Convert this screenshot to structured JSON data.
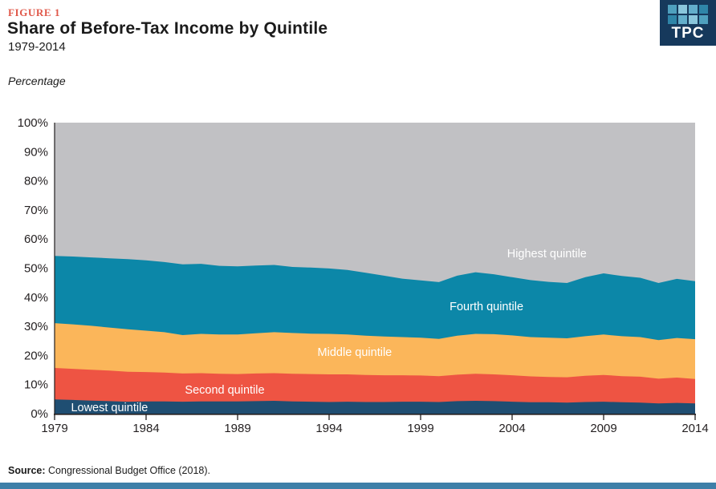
{
  "header": {
    "figure_label": "FIGURE 1",
    "title": "Share of Before-Tax Income by Quintile",
    "subtitle": "1979-2014",
    "unit_label": "Percentage"
  },
  "logo": {
    "text": "TPC",
    "bg_color": "#16395C",
    "square_colors": [
      "#4FA0BE",
      "#8AC6DC",
      "#63AECB",
      "#2F85A8",
      "#2F85A8",
      "#63AECB",
      "#8AC6DC",
      "#4FA0BE"
    ]
  },
  "source": {
    "label": "Source:",
    "text": " Congressional Budget Office  (2018)."
  },
  "footer": {
    "bar_color": "#3E7FA8"
  },
  "chart_data": {
    "type": "area",
    "stacked": true,
    "title": "Share of Before-Tax Income by Quintile",
    "subtitle": "1979-2014",
    "ylabel": "Percentage",
    "ylim": [
      0,
      100
    ],
    "ytick_step": 10,
    "ytick_suffix": "%",
    "grid": false,
    "legend_position": "inline-area-labels",
    "years": [
      1979,
      1980,
      1981,
      1982,
      1983,
      1984,
      1985,
      1986,
      1987,
      1988,
      1989,
      1990,
      1991,
      1992,
      1993,
      1994,
      1995,
      1996,
      1997,
      1998,
      1999,
      2000,
      2001,
      2002,
      2003,
      2004,
      2005,
      2006,
      2007,
      2008,
      2009,
      2010,
      2011,
      2012,
      2013,
      2014
    ],
    "xticks": [
      1979,
      1984,
      1989,
      1994,
      1999,
      2004,
      2009,
      2014
    ],
    "series": [
      {
        "name": "Lowest quintile",
        "color": "#1F4E72",
        "values": [
          4.9,
          4.7,
          4.5,
          4.3,
          4.1,
          4.2,
          4.2,
          4.1,
          4.2,
          4.2,
          4.2,
          4.3,
          4.4,
          4.2,
          4.1,
          4.0,
          4.1,
          4.0,
          4.0,
          4.1,
          4.1,
          4.0,
          4.3,
          4.4,
          4.3,
          4.1,
          3.9,
          3.9,
          3.8,
          4.0,
          4.1,
          3.9,
          3.8,
          3.5,
          3.7,
          3.5
        ]
      },
      {
        "name": "Second quintile",
        "color": "#EE5443",
        "values": [
          10.8,
          10.7,
          10.6,
          10.5,
          10.3,
          10.1,
          9.9,
          9.7,
          9.7,
          9.5,
          9.4,
          9.5,
          9.5,
          9.5,
          9.5,
          9.5,
          9.4,
          9.3,
          9.2,
          9.1,
          9.0,
          8.9,
          9.1,
          9.3,
          9.2,
          9.1,
          8.9,
          8.7,
          8.7,
          9.0,
          9.2,
          9.0,
          8.9,
          8.5,
          8.7,
          8.4
        ]
      },
      {
        "name": "Middle quintile",
        "color": "#FBB65A",
        "values": [
          15.4,
          15.3,
          15.1,
          14.8,
          14.6,
          14.2,
          13.9,
          13.2,
          13.5,
          13.5,
          13.6,
          13.8,
          14.1,
          14.0,
          13.9,
          13.9,
          13.7,
          13.5,
          13.3,
          13.1,
          13.0,
          12.8,
          13.4,
          13.7,
          13.8,
          13.7,
          13.5,
          13.5,
          13.4,
          13.6,
          13.9,
          13.7,
          13.6,
          13.3,
          13.6,
          13.7
        ]
      },
      {
        "name": "Fourth quintile",
        "color": "#0C87A8",
        "values": [
          23.1,
          23.3,
          23.5,
          23.8,
          24.1,
          24.2,
          24.1,
          24.3,
          24.1,
          23.6,
          23.4,
          23.3,
          23.1,
          22.7,
          22.7,
          22.5,
          22.2,
          21.6,
          20.9,
          20.1,
          19.7,
          19.5,
          20.6,
          21.2,
          20.6,
          20.0,
          19.6,
          19.2,
          19.0,
          20.3,
          21.0,
          20.7,
          20.4,
          19.6,
          20.3,
          19.9
        ]
      },
      {
        "name": "Highest quintile",
        "color": "#C1C1C4",
        "values": [
          45.8,
          46.0,
          46.3,
          46.6,
          46.9,
          47.3,
          47.9,
          48.7,
          48.5,
          49.2,
          49.4,
          49.1,
          48.9,
          49.6,
          49.8,
          50.1,
          50.6,
          51.6,
          52.6,
          53.6,
          54.2,
          54.8,
          52.6,
          51.4,
          52.1,
          53.1,
          54.1,
          54.7,
          55.1,
          53.1,
          51.8,
          52.7,
          53.3,
          55.1,
          53.7,
          54.5
        ]
      }
    ],
    "area_labels": [
      {
        "text": "Lowest quintile",
        "year": 1982.0,
        "pct": 2.2
      },
      {
        "text": "Second quintile",
        "year": 1988.3,
        "pct": 8.3
      },
      {
        "text": "Middle quintile",
        "year": 1995.4,
        "pct": 21.2
      },
      {
        "text": "Fourth quintile",
        "year": 2002.6,
        "pct": 36.9
      },
      {
        "text": "Highest quintile",
        "year": 2005.9,
        "pct": 55.1
      }
    ]
  }
}
